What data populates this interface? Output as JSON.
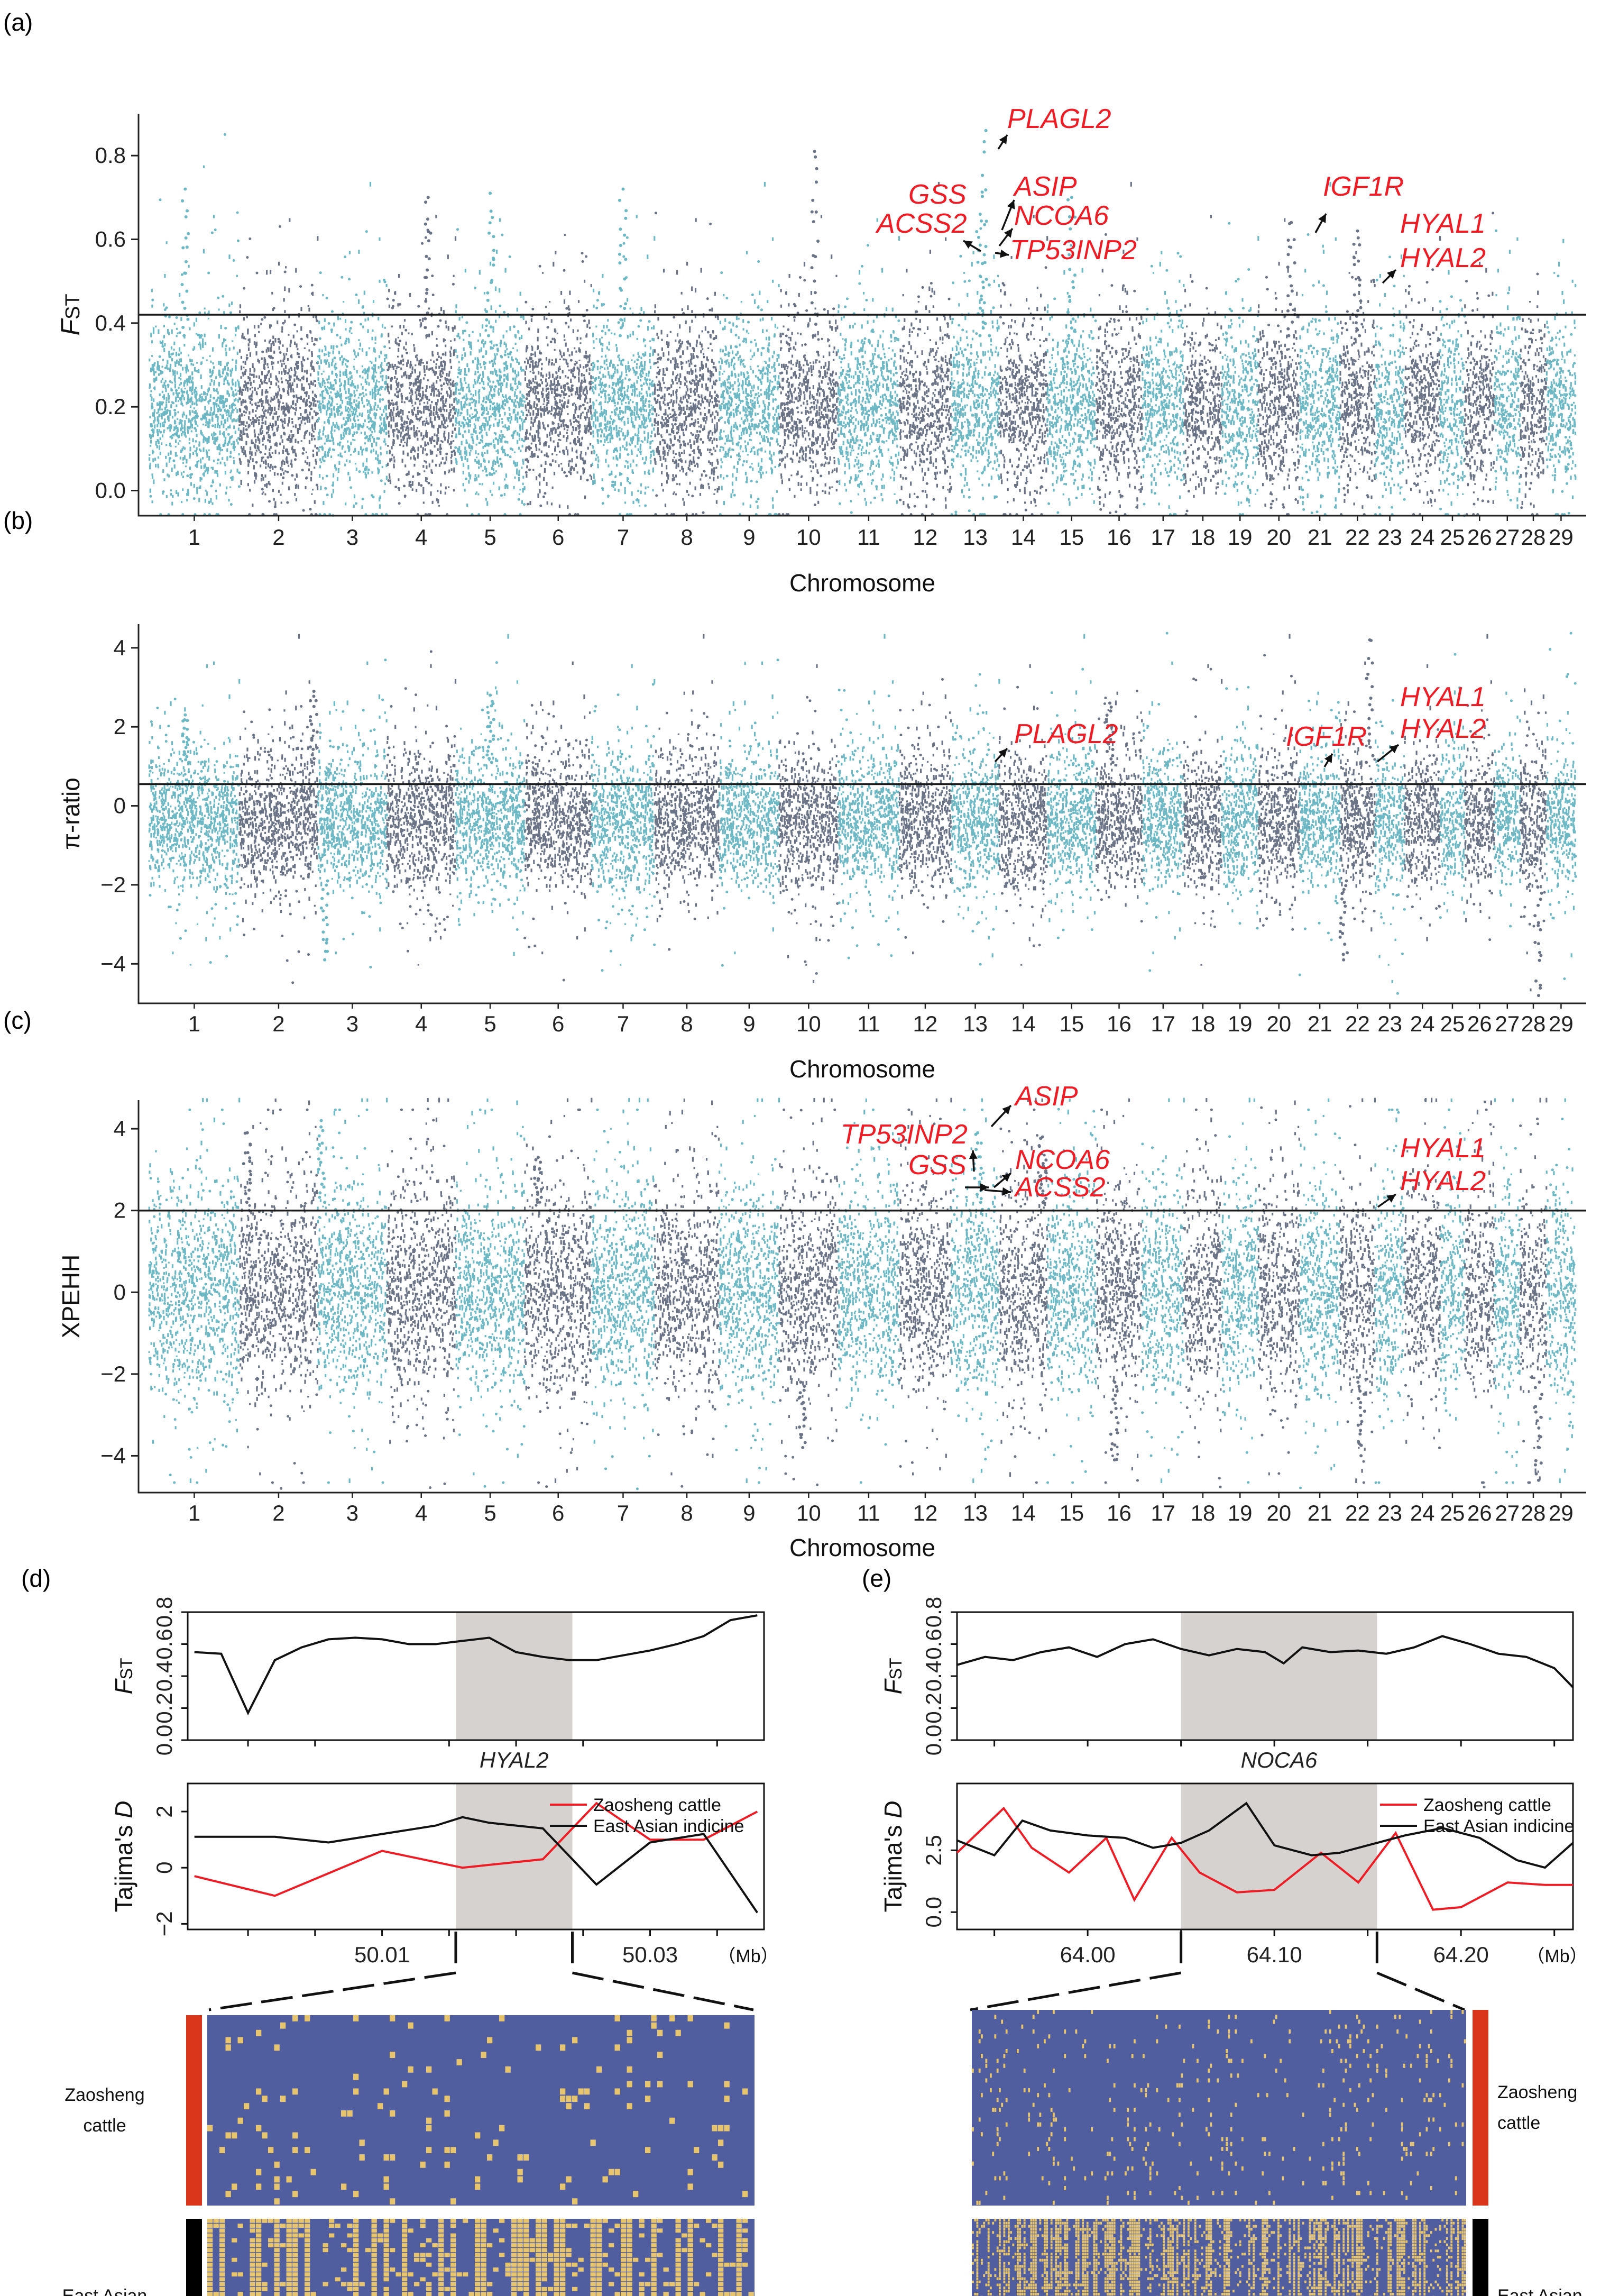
{
  "colors": {
    "teal": "#6cb8c4",
    "slate": "#6b7487",
    "red": "#ee1c25",
    "black": "#111111",
    "shade": "#d6d2cf",
    "hapBlue": "#505d9f",
    "hapYellow": "#e7c56e",
    "zaoBar": "#d9361b",
    "eaiBar": "#000000"
  },
  "panel_labels": [
    "(a)",
    "(b)",
    "(c)",
    "(d)",
    "(e)"
  ],
  "chart_data": [
    {
      "id": "a",
      "type": "scatter",
      "subtype": "manhattan",
      "ylabel": "FST",
      "xlabel": "Chromosome",
      "ylim": [
        -0.06,
        0.9
      ],
      "yticks": [
        0.0,
        0.2,
        0.4,
        0.6,
        0.8
      ],
      "ytick_labels": [
        "0.0",
        "0.2",
        "0.4",
        "0.6",
        "0.8"
      ],
      "threshold": 0.42,
      "chromosomes": [
        "1",
        "2",
        "3",
        "4",
        "5",
        "6",
        "7",
        "8",
        "9",
        "10",
        "11",
        "12",
        "13",
        "14",
        "15",
        "16",
        "17",
        "18",
        "19",
        "20",
        "21",
        "22",
        "23",
        "24",
        "25",
        "26",
        "27",
        "28",
        "29"
      ],
      "base": {
        "center": 0.2,
        "spread": 0.17,
        "min": -0.04
      },
      "peaks": [
        {
          "chr": 13,
          "pos": 0.72,
          "value": 0.86
        },
        {
          "chr": 13,
          "pos": 0.6,
          "value": 0.66
        },
        {
          "chr": 10,
          "pos": 0.6,
          "value": 0.81
        },
        {
          "chr": 20,
          "pos": 0.8,
          "value": 0.64
        },
        {
          "chr": 22,
          "pos": 0.5,
          "value": 0.62
        },
        {
          "chr": 7,
          "pos": 0.5,
          "value": 0.72
        },
        {
          "chr": 5,
          "pos": 0.5,
          "value": 0.71
        },
        {
          "chr": 1,
          "pos": 0.4,
          "value": 0.72
        },
        {
          "chr": 15,
          "pos": 0.5,
          "value": 0.7
        },
        {
          "chr": 4,
          "pos": 0.6,
          "value": 0.7
        }
      ],
      "annotations": [
        {
          "label": "PLAGL2",
          "value": 0.86
        },
        {
          "label": "ASIP",
          "value": 0.66
        },
        {
          "label": "GSS",
          "value": 0.63
        },
        {
          "label": "NCOA6",
          "value": 0.64
        },
        {
          "label": "ACSS2",
          "value": 0.6
        },
        {
          "label": "TP53INP2",
          "value": 0.59
        },
        {
          "label": "IGF1R",
          "value": 0.64
        },
        {
          "label": "HYAL1",
          "value": 0.52
        },
        {
          "label": "HYAL2",
          "value": 0.52
        }
      ]
    },
    {
      "id": "b",
      "type": "scatter",
      "subtype": "manhattan",
      "ylabel": "π-ratio",
      "xlabel": "Chromosome",
      "ylim": [
        -5.0,
        4.6
      ],
      "yticks": [
        -4,
        -2,
        0,
        2,
        4
      ],
      "ytick_labels": [
        "−4",
        "−2",
        "0",
        "2",
        "4"
      ],
      "threshold": 0.55,
      "chromosomes": [
        "1",
        "2",
        "3",
        "4",
        "5",
        "6",
        "7",
        "8",
        "9",
        "10",
        "11",
        "12",
        "13",
        "14",
        "15",
        "16",
        "17",
        "18",
        "19",
        "20",
        "21",
        "22",
        "23",
        "24",
        "25",
        "26",
        "27",
        "28",
        "29"
      ],
      "base": {
        "center": -0.4,
        "spread": 1.5,
        "min": -2.8
      },
      "peaks": [
        {
          "chr": 22,
          "pos": 0.85,
          "value": 4.2
        },
        {
          "chr": 2,
          "pos": 0.95,
          "value": 2.9
        },
        {
          "chr": 5,
          "pos": 0.5,
          "value": 2.8
        },
        {
          "chr": 3,
          "pos": 0.1,
          "value": -3.9
        },
        {
          "chr": 28,
          "pos": 0.7,
          "value": -4.8
        },
        {
          "chr": 22,
          "pos": 0.1,
          "value": -3.9
        },
        {
          "chr": 16,
          "pos": 0.3,
          "value": 2.6
        },
        {
          "chr": 1,
          "pos": 0.4,
          "value": 2.3
        }
      ],
      "annotations": [
        {
          "label": "PLAGL2",
          "value": 1.2
        },
        {
          "label": "IGF1R",
          "value": 1.3
        },
        {
          "label": "HYAL1",
          "value": 1.6
        },
        {
          "label": "HYAL2",
          "value": 1.6
        }
      ]
    },
    {
      "id": "c",
      "type": "scatter",
      "subtype": "manhattan",
      "ylabel": "XPEHH",
      "xlabel": "Chromosome",
      "ylim": [
        -4.9,
        4.7
      ],
      "yticks": [
        -4,
        -2,
        0,
        2,
        4
      ],
      "ytick_labels": [
        "−4",
        "−2",
        "0",
        "2",
        "4"
      ],
      "threshold": 2.0,
      "chromosomes": [
        "1",
        "2",
        "3",
        "4",
        "5",
        "6",
        "7",
        "8",
        "9",
        "10",
        "11",
        "12",
        "13",
        "14",
        "15",
        "16",
        "17",
        "18",
        "19",
        "20",
        "21",
        "22",
        "23",
        "24",
        "25",
        "26",
        "27",
        "28",
        "29"
      ],
      "base": {
        "center": 0.0,
        "spread": 2.2,
        "min": -3.0
      },
      "peaks": [
        {
          "chr": 13,
          "pos": 0.55,
          "value": 3.9
        },
        {
          "chr": 14,
          "pos": 0.9,
          "value": 3.8
        },
        {
          "chr": 3,
          "pos": 0.05,
          "value": 4.2
        },
        {
          "chr": 2,
          "pos": 0.1,
          "value": 3.9
        },
        {
          "chr": 6,
          "pos": 0.2,
          "value": 3.3
        },
        {
          "chr": 16,
          "pos": 0.4,
          "value": -4.1
        },
        {
          "chr": 28,
          "pos": 0.7,
          "value": -4.6
        },
        {
          "chr": 22,
          "pos": 0.6,
          "value": -4.0
        },
        {
          "chr": 10,
          "pos": 0.4,
          "value": -3.8
        }
      ],
      "annotations": [
        {
          "label": "ASIP",
          "value": 3.9
        },
        {
          "label": "TP53INP2",
          "value": 2.5
        },
        {
          "label": "NCOA6",
          "value": 2.2
        },
        {
          "label": "GSS",
          "value": 2.2
        },
        {
          "label": "ACSS2",
          "value": 2.1
        },
        {
          "label": "HYAL1",
          "value": 2.6
        },
        {
          "label": "HYAL2",
          "value": 2.6
        }
      ]
    },
    {
      "id": "d-fst",
      "type": "line",
      "ylabel": "FST",
      "ylim": [
        0.0,
        0.8
      ],
      "yticks": [
        0.0,
        0.2,
        0.4,
        0.6,
        0.8
      ],
      "ytick_labels": [
        "0.0",
        "0.2",
        "0.4",
        "0.6",
        "0.8"
      ],
      "xlim": [
        49.9955,
        50.0385
      ],
      "highlight": [
        50.0155,
        50.0242
      ],
      "gene_label": "HYAL2",
      "series": [
        {
          "name": "FST",
          "x": [
            49.996,
            49.998,
            50.0,
            50.002,
            50.004,
            50.006,
            50.008,
            50.01,
            50.012,
            50.014,
            50.016,
            50.018,
            50.02,
            50.022,
            50.024,
            50.026,
            50.028,
            50.03,
            50.032,
            50.034,
            50.036,
            50.038
          ],
          "values": [
            0.55,
            0.54,
            0.17,
            0.5,
            0.58,
            0.63,
            0.64,
            0.63,
            0.6,
            0.6,
            0.62,
            0.64,
            0.55,
            0.52,
            0.5,
            0.5,
            0.53,
            0.56,
            0.6,
            0.65,
            0.75,
            0.78
          ]
        }
      ]
    },
    {
      "id": "d-tajima",
      "type": "line",
      "ylabel": "Tajima's D",
      "ylim": [
        -2.2,
        3.0
      ],
      "yticks": [
        -2,
        0,
        2
      ],
      "ytick_labels": [
        "−2",
        "0",
        "2"
      ],
      "xlim": [
        49.9955,
        50.0385
      ],
      "highlight": [
        50.0155,
        50.0242
      ],
      "xticks": [
        50.01,
        50.03
      ],
      "xtick_labels": [
        "50.01",
        "50.03"
      ],
      "xunit": "（Mb）",
      "legend": [
        "Zaosheng cattle",
        "East Asian indicine"
      ],
      "series": [
        {
          "name": "Zaosheng cattle",
          "color": "#ee1c25",
          "x": [
            49.996,
            50.002,
            50.01,
            50.016,
            50.018,
            50.022,
            50.026,
            50.03,
            50.034,
            50.038
          ],
          "values": [
            -0.3,
            -1.0,
            0.6,
            0.0,
            0.1,
            0.3,
            2.3,
            1.0,
            1.0,
            2.0
          ]
        },
        {
          "name": "East Asian indicine",
          "color": "#111111",
          "x": [
            49.996,
            50.002,
            50.006,
            50.014,
            50.016,
            50.018,
            50.022,
            50.026,
            50.03,
            50.034,
            50.038
          ],
          "values": [
            1.1,
            1.1,
            0.9,
            1.5,
            1.8,
            1.6,
            1.4,
            -0.6,
            0.9,
            1.2,
            -1.6
          ]
        }
      ]
    },
    {
      "id": "e-fst",
      "type": "line",
      "ylabel": "FST",
      "ylim": [
        0.0,
        0.8
      ],
      "yticks": [
        0.0,
        0.2,
        0.4,
        0.6,
        0.8
      ],
      "ytick_labels": [
        "0.0",
        "0.2",
        "0.4",
        "0.6",
        "0.8"
      ],
      "xlim": [
        63.93,
        64.26
      ],
      "highlight": [
        64.05,
        64.155
      ],
      "gene_label": "NOCA6",
      "series": [
        {
          "name": "FST",
          "x": [
            63.93,
            63.945,
            63.96,
            63.975,
            63.99,
            64.005,
            64.02,
            64.035,
            64.05,
            64.065,
            64.08,
            64.095,
            64.105,
            64.115,
            64.13,
            64.145,
            64.16,
            64.175,
            64.19,
            64.205,
            64.22,
            64.235,
            64.25,
            64.26
          ],
          "values": [
            0.47,
            0.52,
            0.5,
            0.55,
            0.58,
            0.52,
            0.6,
            0.63,
            0.57,
            0.53,
            0.57,
            0.55,
            0.48,
            0.58,
            0.55,
            0.56,
            0.54,
            0.58,
            0.65,
            0.6,
            0.54,
            0.52,
            0.45,
            0.33
          ]
        }
      ]
    },
    {
      "id": "e-tajima",
      "type": "line",
      "ylabel": "Tajima's D",
      "ylim": [
        -0.7,
        5.2
      ],
      "yticks": [
        0.0,
        2.5
      ],
      "ytick_labels": [
        "0.0",
        "2.5"
      ],
      "xlim": [
        63.93,
        64.26
      ],
      "highlight": [
        64.05,
        64.155
      ],
      "xticks": [
        64.0,
        64.1,
        64.2
      ],
      "xtick_labels": [
        "64.00",
        "64.10",
        "64.20"
      ],
      "xunit": "（Mb）",
      "legend": [
        "Zaosheng cattle",
        "East Asian indicine"
      ],
      "series": [
        {
          "name": "Zaosheng cattle",
          "color": "#ee1c25",
          "x": [
            63.93,
            63.955,
            63.97,
            63.99,
            64.01,
            64.025,
            64.045,
            64.06,
            64.08,
            64.1,
            64.125,
            64.145,
            64.165,
            64.185,
            64.2,
            64.225,
            64.245,
            64.26
          ],
          "values": [
            2.4,
            4.2,
            2.6,
            1.6,
            3.0,
            0.5,
            3.0,
            1.6,
            0.8,
            0.9,
            2.4,
            1.2,
            3.2,
            0.1,
            0.2,
            1.2,
            1.1,
            1.1
          ]
        },
        {
          "name": "East Asian indicine",
          "color": "#111111",
          "x": [
            63.93,
            63.95,
            63.965,
            63.98,
            64.0,
            64.02,
            64.035,
            64.05,
            64.065,
            64.085,
            64.1,
            64.12,
            64.135,
            64.155,
            64.17,
            64.19,
            64.21,
            64.23,
            64.245,
            64.26
          ],
          "values": [
            2.9,
            2.3,
            3.7,
            3.3,
            3.1,
            3.0,
            2.6,
            2.8,
            3.3,
            4.4,
            2.7,
            2.3,
            2.4,
            2.8,
            3.1,
            3.4,
            3.0,
            2.1,
            1.8,
            2.8
          ]
        }
      ]
    }
  ],
  "haplotypes": {
    "d": {
      "groups": [
        {
          "label": "Zaosheng cattle",
          "lines": [
            "Zaosheng",
            "cattle"
          ]
        },
        {
          "label": "East Asian indicine",
          "lines": [
            "East Asian",
            "indicine"
          ]
        }
      ],
      "rows": [
        26,
        38
      ],
      "cols": 90,
      "yellow_freq": [
        0.05,
        0.45
      ]
    },
    "e": {
      "groups": [
        {
          "label": "Zaosheng cattle",
          "lines": [
            "Zaosheng",
            "cattle"
          ]
        },
        {
          "label": "East Asian indicine",
          "lines": [
            "East Asian",
            "indicine"
          ]
        }
      ],
      "rows": [
        40,
        60
      ],
      "cols": 220,
      "yellow_freq": [
        0.04,
        0.4
      ]
    }
  }
}
